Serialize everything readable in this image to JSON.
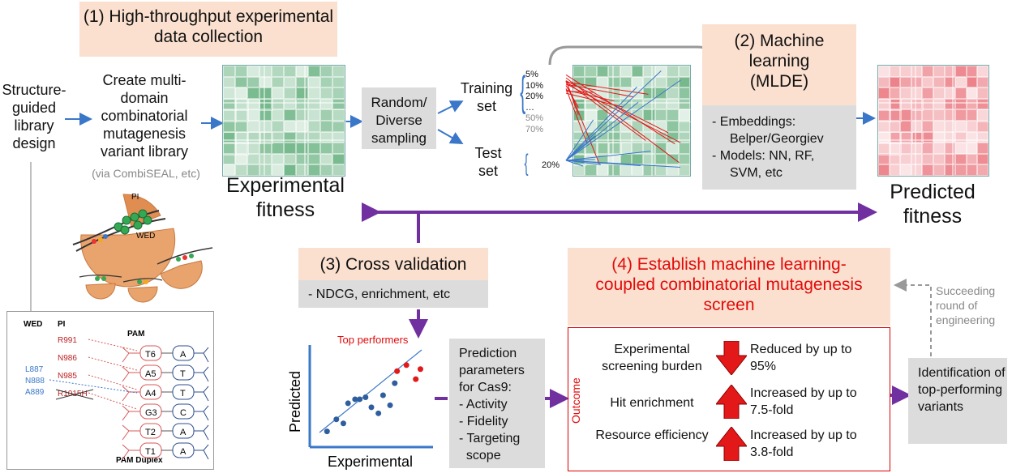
{
  "steps": {
    "step1": "(1) High-throughput experimental data collection",
    "step2": "(2) Machine learning (MLDE)",
    "step3": "(3) Cross validation",
    "step4": "(4) Establish machine learning-coupled combinatorial mutagenesis screen"
  },
  "left": {
    "design": "Structure-guided library design",
    "library": "Create multi-domain combinatorial mutagenesis variant library",
    "via": "(via CombiSEAL, etc)"
  },
  "exp_fitness": "Experimental fitness",
  "pred_fitness": "Predicted fitness",
  "sampling": "Random/ Diverse sampling",
  "training": "Training set",
  "test": "Test set",
  "train_pct": [
    "5%",
    "10%",
    "20%",
    "…",
    "50%",
    "70%"
  ],
  "test_pct": "20%",
  "ml_items": [
    "-   Embeddings:",
    "    Belper/Georgiev",
    "-   Models: NN, RF,",
    "    SVM, etc"
  ],
  "cv_item": "- NDCG, enrichment, etc",
  "scatter": {
    "ylabel": "Predicted",
    "xlabel": "Experimental",
    "annotation": "Top performers"
  },
  "chart_data": {
    "type": "scatter",
    "xlabel": "Experimental",
    "ylabel": "Predicted",
    "series": [
      {
        "values": [
          [
            0.12,
            0.14
          ],
          [
            0.2,
            0.26
          ],
          [
            0.26,
            0.22
          ],
          [
            0.3,
            0.42
          ],
          [
            0.36,
            0.46
          ],
          [
            0.4,
            0.46
          ],
          [
            0.45,
            0.48
          ],
          [
            0.5,
            0.38
          ],
          [
            0.56,
            0.32
          ],
          [
            0.6,
            0.5
          ],
          [
            0.66,
            0.4
          ],
          [
            0.7,
            0.62
          ]
        ]
      },
      {
        "values": [
          [
            0.72,
            0.74
          ],
          [
            0.8,
            0.8
          ],
          [
            0.88,
            0.66
          ],
          [
            0.92,
            0.76
          ]
        ]
      }
    ]
  },
  "params": [
    "Prediction",
    "parameters",
    "for Cas9:",
    "- Activity",
    "- Fidelity",
    "- Targeting",
    "  scope"
  ],
  "outcome": {
    "label": "Outcome",
    "rows": [
      {
        "metric": "Experimental screening burden",
        "change": "Reduced by up to 95%",
        "dir": "down"
      },
      {
        "metric": "Hit enrichment",
        "change": "Increased by up to 7.5-fold",
        "dir": "up"
      },
      {
        "metric": "Resource efficiency",
        "change": "Increased by up to 3.8-fold",
        "dir": "up"
      }
    ]
  },
  "succeeding": "Succeeding round of engineering",
  "identification": "Identification of top-performing variants",
  "protein": {
    "pi": "PI",
    "wed": "WED"
  },
  "pam": {
    "wed": "WED",
    "pi": "PI",
    "pam": "PAM",
    "duplex": "PAM Duplex",
    "pi_res": [
      "R991",
      "N986",
      "N985",
      "R1015H"
    ],
    "wed_res": [
      "L887",
      "N888",
      "A889"
    ],
    "left_bases": [
      "T6",
      "A5",
      "A4",
      "G3",
      "T2",
      "T1"
    ],
    "right_bases": [
      "A",
      "T",
      "T",
      "C",
      "A",
      "A"
    ]
  },
  "colors": {
    "green": "#5fae7a",
    "red": "#e8737a",
    "accent": "#e10b0b",
    "purple": "#7030a0",
    "blue": "#3a77c9"
  }
}
